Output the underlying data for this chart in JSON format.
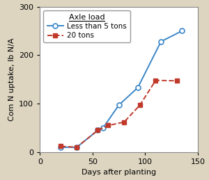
{
  "line1_x": [
    20,
    35,
    55,
    60,
    75,
    93,
    115,
    135
  ],
  "line1_y": [
    10,
    10,
    45,
    50,
    97,
    133,
    228,
    250
  ],
  "line2_x": [
    20,
    35,
    55,
    65,
    80,
    95,
    110,
    130
  ],
  "line2_y": [
    12,
    10,
    45,
    55,
    62,
    97,
    148,
    147
  ],
  "line1_color": "#3a87c8",
  "line2_color": "#c0392b",
  "bg_color": "#ddd5c0",
  "plot_bg": "#ffffff",
  "xlabel": "Days after planting",
  "ylabel": "Com N uptake, lb N/A",
  "legend_title": "Axle load",
  "legend1": "Less than 5 tons",
  "legend2": "20 tons",
  "xlim": [
    0,
    150
  ],
  "ylim": [
    0,
    300
  ],
  "xticks": [
    0,
    50,
    100,
    150
  ],
  "yticks": [
    0,
    100,
    200,
    300
  ],
  "xlabel_fontsize": 8,
  "ylabel_fontsize": 8,
  "tick_fontsize": 8,
  "legend_fontsize": 7.5,
  "legend_title_fontsize": 8
}
